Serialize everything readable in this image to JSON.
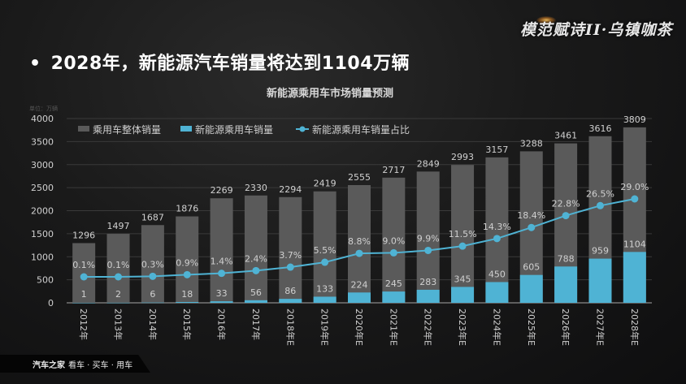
{
  "headline": {
    "bullet": "•",
    "text": "2028年，新能源汽车销量将达到1104万辆"
  },
  "brand_logo": "模范赋诗II·乌镇咖茶",
  "footer": {
    "brand": "汽车之家",
    "slogan": "看车 · 买车 · 用车"
  },
  "colors": {
    "total_bar": "#5a5a5a",
    "nev_bar": "#4fb3d4",
    "line": "#4fb3d4",
    "gridline": "#3a3a3a",
    "label": "#d0d0d0"
  },
  "chart_data": {
    "type": "bar",
    "title": "新能源乘用车市场销量预测",
    "unit_label": "单位：万辆",
    "xlabel": "",
    "ylabel": "",
    "ylim": [
      0,
      4000
    ],
    "yticks": [
      0,
      500,
      1000,
      1500,
      2000,
      2500,
      3000,
      3500,
      4000
    ],
    "grid": true,
    "legend_position": "top-left",
    "categories": [
      "2012年",
      "2013年",
      "2014年",
      "2015年",
      "2016年",
      "2017年",
      "2018年E",
      "2019年E",
      "2020年E",
      "2021年E",
      "2022年E",
      "2023年E",
      "2024年E",
      "2025年E",
      "2026年E",
      "2027年E",
      "2028年E"
    ],
    "series": [
      {
        "name": "乘用车整体销量",
        "type": "bar",
        "values": [
          1296,
          1497,
          1687,
          1876,
          2269,
          2330,
          2294,
          2419,
          2555,
          2717,
          2849,
          2993,
          3157,
          3288,
          3461,
          3616,
          3809
        ]
      },
      {
        "name": "新能源乘用车销量",
        "type": "bar",
        "values": [
          1,
          2,
          6,
          18,
          33,
          56,
          86,
          133,
          224,
          245,
          283,
          345,
          450,
          605,
          788,
          959,
          1104
        ]
      },
      {
        "name": "新能源乘用车销量占比",
        "type": "line",
        "unit": "%",
        "values": [
          0.1,
          0.1,
          0.3,
          0.9,
          1.4,
          2.4,
          3.7,
          5.5,
          8.8,
          9.0,
          9.9,
          11.5,
          14.3,
          18.4,
          22.8,
          26.5,
          29.0
        ],
        "labels": [
          "0.1%",
          "0.1%",
          "0.3%",
          "0.9%",
          "1.4%",
          "2.4%",
          "3.7%",
          "5.5%",
          "8.8%",
          "9.0%",
          "9.9%",
          "11.5%",
          "14.3%",
          "18.4%",
          "22.8%",
          "26.5%",
          "29.0%"
        ]
      }
    ]
  }
}
